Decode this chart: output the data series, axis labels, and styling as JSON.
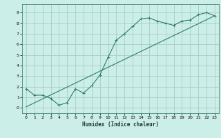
{
  "title": "",
  "xlabel": "Humidex (Indice chaleur)",
  "bg_color": "#cceee8",
  "line_color": "#2a7d6e",
  "grid_color": "#aaccc8",
  "xlim": [
    -0.5,
    23.5
  ],
  "ylim": [
    -0.5,
    9.8
  ],
  "xticks": [
    0,
    1,
    2,
    3,
    4,
    5,
    6,
    7,
    8,
    9,
    10,
    11,
    12,
    13,
    14,
    15,
    16,
    17,
    18,
    19,
    20,
    21,
    22,
    23
  ],
  "yticks": [
    0,
    1,
    2,
    3,
    4,
    5,
    6,
    7,
    8,
    9
  ],
  "series1_x": [
    0,
    1,
    2,
    3,
    4,
    5,
    6,
    7,
    8,
    9,
    10,
    11,
    12,
    13,
    14,
    15,
    16,
    17,
    18,
    19,
    20,
    21,
    22,
    23
  ],
  "series1_y": [
    1.8,
    1.2,
    1.2,
    0.9,
    0.25,
    0.5,
    1.8,
    1.4,
    2.1,
    3.1,
    4.8,
    6.4,
    7.0,
    7.7,
    8.4,
    8.5,
    8.2,
    8.0,
    7.8,
    8.2,
    8.3,
    8.8,
    9.0,
    8.7
  ],
  "series2_x": [
    0,
    23
  ],
  "series2_y": [
    0.1,
    8.7
  ]
}
